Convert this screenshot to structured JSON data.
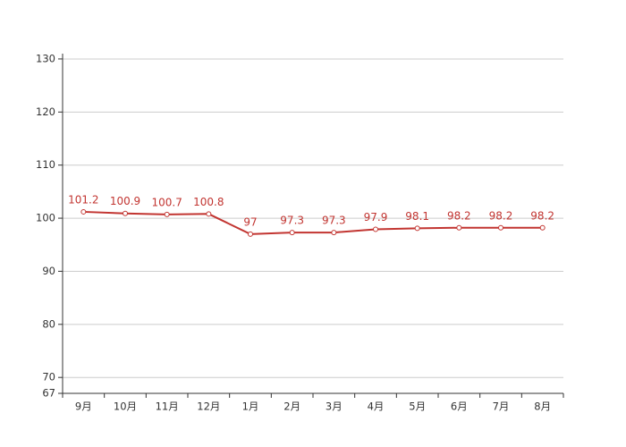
{
  "chart_data": {
    "type": "line",
    "categories": [
      "9月",
      "10月",
      "11月",
      "12月",
      "1月",
      "2月",
      "3月",
      "4月",
      "5月",
      "6月",
      "7月",
      "8月"
    ],
    "values": [
      101.2,
      100.9,
      100.7,
      100.8,
      97,
      97.3,
      97.3,
      97.9,
      98.1,
      98.2,
      98.2,
      98.2
    ],
    "color": "#c23531",
    "ylim": [
      67,
      131
    ],
    "yticks": [
      67,
      70,
      80,
      90,
      100,
      110,
      120,
      130
    ],
    "grid": true
  }
}
